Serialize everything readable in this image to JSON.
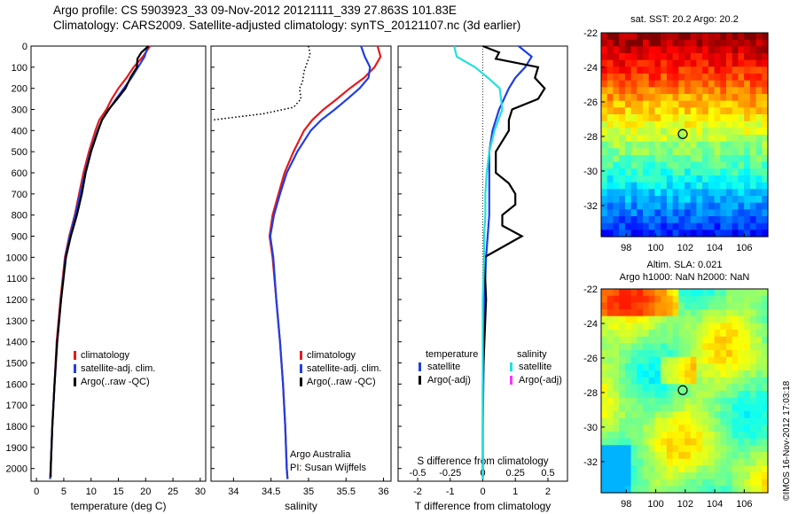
{
  "header": {
    "line1": "Argo profile: CS 5903923_33 09-Nov-2012 20121111_339 27.863S 101.83E",
    "line2": "Climatology: CARS2009. Satellite-adjusted climatology: synTS_20121107.nc (3d earlier)"
  },
  "depth_ticks": [
    0,
    100,
    200,
    300,
    400,
    500,
    600,
    700,
    800,
    900,
    1000,
    1100,
    1200,
    1300,
    1400,
    1500,
    1600,
    1700,
    1800,
    1900,
    2000
  ],
  "colors": {
    "climatology": "#e41a1c",
    "satellite": "#1f3fe0",
    "argo": "#000000",
    "cyan": "#22e0e0",
    "magenta": "#ff33ff"
  },
  "chart_data": [
    {
      "id": "temperature",
      "type": "line",
      "xlabel": "temperature (deg C)",
      "ylabel": "",
      "xlim": [
        -1,
        31
      ],
      "ylim": [
        2060,
        0
      ],
      "x_ticks": [
        0,
        5,
        10,
        15,
        20,
        25,
        30
      ],
      "legend": [
        "climatology",
        "satellite-adj. clim.",
        "Argo(..raw -QC)"
      ],
      "legend_placement": "center",
      "series": [
        {
          "name": "climatology",
          "color": "#e41a1c",
          "depth": [
            0,
            50,
            100,
            150,
            200,
            250,
            300,
            350,
            400,
            500,
            600,
            700,
            800,
            900,
            1000,
            1200,
            1400,
            1600,
            1800,
            2000,
            2050
          ],
          "values": [
            20.8,
            19.5,
            17.8,
            16.5,
            15.0,
            13.8,
            12.8,
            11.5,
            10.8,
            9.6,
            8.6,
            7.8,
            7.0,
            6.0,
            5.2,
            4.4,
            3.7,
            3.3,
            2.9,
            2.6,
            2.5
          ]
        },
        {
          "name": "satellite-adj. clim.",
          "color": "#1f3fe0",
          "depth": [
            0,
            50,
            100,
            150,
            200,
            250,
            300,
            350,
            400,
            500,
            600,
            700,
            800,
            900,
            1000,
            1200,
            1400,
            1600,
            1800,
            2000,
            2050
          ],
          "values": [
            20.4,
            19.8,
            18.6,
            17.4,
            16.0,
            14.6,
            13.3,
            12.0,
            11.2,
            9.9,
            8.9,
            8.0,
            7.1,
            6.1,
            5.3,
            4.5,
            3.8,
            3.3,
            2.9,
            2.6,
            2.5
          ]
        },
        {
          "name": "Argo(..raw -QC)",
          "color": "#000000",
          "depth": [
            0,
            30,
            60,
            100,
            150,
            200,
            250,
            300,
            350,
            400,
            500,
            600,
            700,
            800,
            900,
            1000,
            1200,
            1400,
            1600,
            1800,
            2000,
            2040
          ],
          "values": [
            20.5,
            19.2,
            18.5,
            18.4,
            17.2,
            16.3,
            14.8,
            13.2,
            12.0,
            11.3,
            10.0,
            9.0,
            8.3,
            7.4,
            6.3,
            5.4,
            4.5,
            3.8,
            3.3,
            2.9,
            2.6,
            2.6
          ]
        }
      ]
    },
    {
      "id": "salinity",
      "type": "line",
      "xlabel": "salinity",
      "ylabel": "",
      "xlim": [
        33.7,
        36.1
      ],
      "ylim": [
        2060,
        0
      ],
      "x_ticks": [
        34,
        34.5,
        35,
        35.5,
        36
      ],
      "x_tick_labels": [
        "34",
        "34.5",
        "35",
        "35.5",
        "36"
      ],
      "legend": [
        "climatology",
        "satellite-adj. clim.",
        "Argo(..raw -QC)"
      ],
      "legend_placement": "lower-right",
      "annotation": [
        "Argo Australia",
        "PI: Susan Wijffels"
      ],
      "series": [
        {
          "name": "climatology",
          "color": "#e41a1c",
          "depth": [
            0,
            50,
            100,
            150,
            200,
            250,
            300,
            350,
            400,
            500,
            600,
            700,
            800,
            900,
            1000,
            1200,
            1400,
            1600,
            1800,
            2000,
            2050
          ],
          "values": [
            35.92,
            35.96,
            35.88,
            35.74,
            35.55,
            35.38,
            35.2,
            35.05,
            34.94,
            34.8,
            34.68,
            34.6,
            34.52,
            34.48,
            34.52,
            34.57,
            34.62,
            34.66,
            34.69,
            34.71,
            34.72
          ]
        },
        {
          "name": "satellite-adj. clim.",
          "color": "#1f3fe0",
          "depth": [
            0,
            50,
            100,
            150,
            200,
            250,
            300,
            350,
            400,
            500,
            600,
            700,
            800,
            900,
            1000,
            1200,
            1400,
            1600,
            1800,
            2000,
            2050
          ],
          "values": [
            35.7,
            35.75,
            35.82,
            35.8,
            35.68,
            35.52,
            35.35,
            35.17,
            35.03,
            34.85,
            34.71,
            34.62,
            34.54,
            34.49,
            34.53,
            34.57,
            34.62,
            34.66,
            34.69,
            34.71,
            34.72
          ]
        },
        {
          "name": "Argo(..raw -QC)",
          "color": "#000000",
          "style": "dotted",
          "depth": [
            0,
            40,
            80,
            120,
            170,
            200,
            250,
            290,
            320,
            350
          ],
          "values": [
            35.0,
            35.02,
            34.98,
            34.94,
            34.92,
            34.88,
            34.9,
            34.8,
            34.4,
            33.72
          ]
        }
      ]
    },
    {
      "id": "difference",
      "type": "line",
      "xlabel": "T difference from climatology",
      "x2label": "S difference from climatology",
      "ylabel": "",
      "xlim": [
        -2.6,
        2.6
      ],
      "ylim": [
        2060,
        0
      ],
      "x_ticks": [
        -2,
        -1,
        0,
        1,
        2
      ],
      "x2_ticks": [
        -0.5,
        -0.25,
        0,
        0.25,
        0.5
      ],
      "x2_tick_labels": [
        "-0.5",
        "-0.25",
        "0",
        "0.25",
        "0.5"
      ],
      "legend_groups": [
        {
          "title": "temperature",
          "items": [
            "satellite",
            "Argo(-adj)"
          ]
        },
        {
          "title": "salinity",
          "items": [
            "satellite",
            "Argo(-adj)"
          ]
        }
      ],
      "series": [
        {
          "name": "temperature satellite",
          "color": "#1f3fe0",
          "depth": [
            0,
            50,
            100,
            150,
            200,
            300,
            400,
            500,
            600,
            700,
            800,
            900,
            1000,
            1200,
            1400,
            1600,
            1800,
            2000,
            2050
          ],
          "values": [
            1.1,
            1.5,
            1.3,
            1.0,
            0.8,
            0.5,
            0.3,
            0.2,
            0.2,
            0.2,
            0.2,
            0.15,
            0.1,
            0.05,
            0.03,
            0.02,
            0.0,
            0.0,
            0.0
          ]
        },
        {
          "name": "temperature Argo(-adj)",
          "color": "#000000",
          "depth": [
            0,
            30,
            60,
            100,
            150,
            200,
            250,
            300,
            350,
            400,
            500,
            600,
            650,
            700,
            750,
            800,
            850,
            900,
            1000,
            1200,
            1400,
            1600,
            1800,
            2000,
            2040
          ],
          "values": [
            0.0,
            0.5,
            0.4,
            1.7,
            1.6,
            1.9,
            1.7,
            0.9,
            0.8,
            0.8,
            0.4,
            0.4,
            0.8,
            1.0,
            1.0,
            0.6,
            0.6,
            1.2,
            0.05,
            0.1,
            0.05,
            0.0,
            0.0,
            0.0,
            0.0
          ]
        },
        {
          "name": "salinity satellite",
          "color": "#22e0e0",
          "depth": [
            0,
            50,
            100,
            150,
            200,
            300,
            400,
            500,
            600,
            700,
            800,
            900,
            1000,
            1200,
            1400,
            1600,
            1800,
            2000,
            2050
          ],
          "values": [
            -0.22,
            -0.2,
            -0.06,
            0.04,
            0.13,
            0.15,
            0.09,
            0.05,
            0.03,
            0.02,
            0.02,
            0.01,
            0.01,
            0.0,
            0.0,
            0.0,
            0.0,
            0.0,
            0.0
          ]
        }
      ]
    },
    {
      "id": "sst-map",
      "type": "heatmap",
      "title": "sat. SST: 20.2 Argo: 20.2",
      "x_ticks": [
        98,
        100,
        102,
        104,
        106
      ],
      "y_ticks": [
        -22,
        -24,
        -26,
        -28,
        -30,
        -32
      ],
      "xlim": [
        96.3,
        107.6
      ],
      "ylim": [
        -33.8,
        -22
      ],
      "marker": {
        "lon": 101.83,
        "lat": -27.863
      }
    },
    {
      "id": "sla-map",
      "type": "heatmap",
      "title": "Altim. SLA: 0.021",
      "subtitle": "Argo h1000: NaN h2000: NaN",
      "x_ticks": [
        98,
        100,
        102,
        104,
        106
      ],
      "y_ticks": [
        -22,
        -24,
        -26,
        -28,
        -30,
        -32
      ],
      "xlim": [
        96.3,
        107.6
      ],
      "ylim": [
        -33.8,
        -22
      ],
      "marker": {
        "lon": 101.83,
        "lat": -27.863
      }
    }
  ],
  "side_label": "©IMOS 16-Nov-2012 17:03:18"
}
